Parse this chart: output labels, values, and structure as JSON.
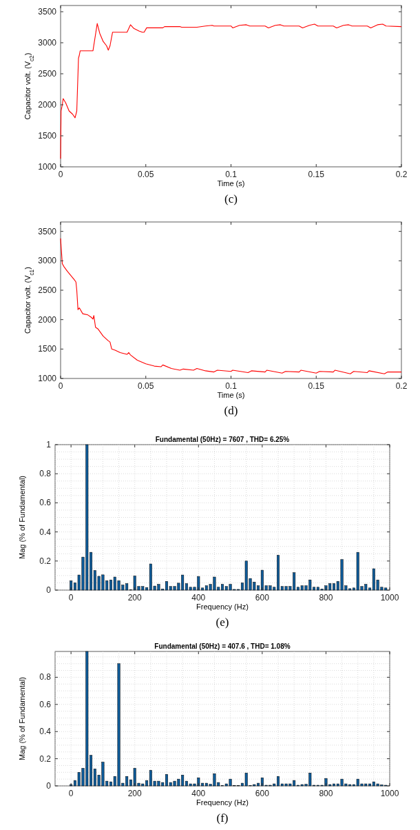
{
  "chart_data": [
    {
      "type": "line",
      "xlabel": "Time (s)",
      "ylabel": "Capacitor volt. (V$_{c2}$)",
      "xlim": [
        0,
        0.2
      ],
      "ylim": [
        1000,
        3600
      ],
      "xticks": [
        0,
        0.05,
        0.1,
        0.15,
        0.2
      ],
      "yticks": [
        1000,
        1500,
        2000,
        2500,
        3000,
        3500
      ],
      "annotations": [
        "(c)"
      ],
      "series": [
        {
          "color": "#ff0000",
          "x": [
            0,
            0.0003,
            0.001,
            0.0015,
            0.003,
            0.005,
            0.007,
            0.0085,
            0.0095,
            0.0105,
            0.011,
            0.0115,
            0.019,
            0.0215,
            0.023,
            0.025,
            0.027,
            0.028,
            0.029,
            0.0305,
            0.039,
            0.041,
            0.043,
            0.046,
            0.048,
            0.049,
            0.0505,
            0.06,
            0.061,
            0.07,
            0.071,
            0.08,
            0.085,
            0.089,
            0.09,
            0.1,
            0.101,
            0.105,
            0.109,
            0.111,
            0.12,
            0.122,
            0.126,
            0.129,
            0.131,
            0.14,
            0.142,
            0.146,
            0.149,
            0.151,
            0.16,
            0.162,
            0.166,
            0.169,
            0.171,
            0.18,
            0.182,
            0.186,
            0.189,
            0.191,
            0.2
          ],
          "values": [
            1130,
            1900,
            2000,
            2100,
            2030,
            1900,
            1850,
            1790,
            1900,
            2750,
            2800,
            2870,
            2870,
            3310,
            3150,
            3020,
            2950,
            2880,
            2950,
            3170,
            3170,
            3290,
            3230,
            3190,
            3170,
            3170,
            3240,
            3240,
            3260,
            3260,
            3250,
            3250,
            3270,
            3280,
            3270,
            3270,
            3240,
            3280,
            3290,
            3270,
            3270,
            3240,
            3280,
            3290,
            3270,
            3270,
            3240,
            3280,
            3300,
            3270,
            3270,
            3240,
            3280,
            3290,
            3270,
            3270,
            3240,
            3290,
            3300,
            3270,
            3260
          ]
        }
      ]
    },
    {
      "type": "line",
      "xlabel": "Time (s)",
      "ylabel": "Capacitor volt. (V$_{c1}$)",
      "xlim": [
        0,
        0.2
      ],
      "ylim": [
        1000,
        3660
      ],
      "xticks": [
        0,
        0.05,
        0.1,
        0.15,
        0.2
      ],
      "yticks": [
        1000,
        1500,
        2000,
        2500,
        3000,
        3500
      ],
      "annotations": [
        "(d)"
      ],
      "series": [
        {
          "color": "#ff0000",
          "x": [
            0,
            0.001,
            0.002,
            0.004,
            0.006,
            0.008,
            0.009,
            0.0095,
            0.0102,
            0.011,
            0.013,
            0.016,
            0.018,
            0.019,
            0.0195,
            0.0205,
            0.022,
            0.025,
            0.028,
            0.029,
            0.03,
            0.032,
            0.035,
            0.039,
            0.04,
            0.041,
            0.045,
            0.05,
            0.055,
            0.059,
            0.06,
            0.065,
            0.07,
            0.072,
            0.078,
            0.08,
            0.085,
            0.09,
            0.092,
            0.1,
            0.101,
            0.11,
            0.112,
            0.12,
            0.121,
            0.13,
            0.132,
            0.14,
            0.141,
            0.15,
            0.152,
            0.16,
            0.161,
            0.17,
            0.172,
            0.18,
            0.181,
            0.19,
            0.192,
            0.2
          ],
          "values": [
            3380,
            2950,
            2900,
            2820,
            2750,
            2680,
            2640,
            2500,
            2170,
            2200,
            2100,
            2080,
            2040,
            2010,
            2070,
            1870,
            1840,
            1720,
            1640,
            1620,
            1500,
            1480,
            1440,
            1410,
            1440,
            1400,
            1310,
            1250,
            1210,
            1200,
            1230,
            1170,
            1140,
            1160,
            1140,
            1170,
            1130,
            1110,
            1140,
            1120,
            1140,
            1100,
            1130,
            1110,
            1140,
            1090,
            1120,
            1110,
            1140,
            1090,
            1120,
            1110,
            1140,
            1080,
            1120,
            1100,
            1130,
            1080,
            1110,
            1110
          ]
        }
      ]
    },
    {
      "type": "bar",
      "title": "Fundamental (50Hz) = 7607 , THD= 6.25%",
      "xlabel": "Frequency (Hz)",
      "ylabel": "Mag (% of Fundamental)",
      "xlim": [
        -50,
        1000
      ],
      "ylim": [
        0,
        1
      ],
      "xticks": [
        0,
        200,
        400,
        600,
        800,
        1000
      ],
      "yticks": [
        0,
        0.2,
        0.4,
        0.6,
        0.8,
        1
      ],
      "grid": true,
      "annotations": [
        "(e)"
      ],
      "series": [
        {
          "color": "#0f5c9a",
          "x": [
            0,
            12.5,
            25,
            37.5,
            50,
            62.5,
            75,
            87.5,
            100,
            112.5,
            125,
            137.5,
            150,
            162.5,
            175,
            187.5,
            200,
            212.5,
            225,
            237.5,
            250,
            262.5,
            275,
            287.5,
            300,
            312.5,
            325,
            337.5,
            350,
            362.5,
            375,
            387.5,
            400,
            412.5,
            425,
            437.5,
            450,
            462.5,
            475,
            487.5,
            500,
            512.5,
            525,
            537.5,
            550,
            562.5,
            575,
            587.5,
            600,
            612.5,
            625,
            637.5,
            650,
            662.5,
            675,
            687.5,
            700,
            712.5,
            725,
            737.5,
            750,
            762.5,
            775,
            787.5,
            800,
            812.5,
            825,
            837.5,
            850,
            862.5,
            875,
            887.5,
            900,
            912.5,
            925,
            937.5,
            950,
            962.5,
            975,
            987.5
          ],
          "values": [
            0.064,
            0.05,
            0.104,
            0.227,
            1,
            0.26,
            0.135,
            0.095,
            0.105,
            0.065,
            0.07,
            0.09,
            0.065,
            0.035,
            0.045,
            0.003,
            0.097,
            0.025,
            0.025,
            0.018,
            0.18,
            0.028,
            0.04,
            0.008,
            0.06,
            0.025,
            0.025,
            0.048,
            0.104,
            0.045,
            0.02,
            0.02,
            0.094,
            0.015,
            0.03,
            0.04,
            0.09,
            0.02,
            0.04,
            0.025,
            0.04,
            0.005,
            0.005,
            0.05,
            0.2,
            0.08,
            0.055,
            0.03,
            0.137,
            0.03,
            0.03,
            0.02,
            0.24,
            0.025,
            0.025,
            0.025,
            0.12,
            0.02,
            0.03,
            0.03,
            0.07,
            0.02,
            0.02,
            0.008,
            0.03,
            0.045,
            0.045,
            0.06,
            0.21,
            0.03,
            0.01,
            0.015,
            0.26,
            0.025,
            0.04,
            0.015,
            0.147,
            0.07,
            0.02,
            0.015
          ]
        }
      ]
    },
    {
      "type": "bar",
      "title": "Fundamental (50Hz) = 407.6 , THD= 1.08%",
      "xlabel": "Frequency (Hz)",
      "ylabel": "Mag (% of Fundamental)",
      "xlim": [
        -50,
        1000
      ],
      "ylim": [
        0,
        0.99
      ],
      "xticks": [
        0,
        200,
        400,
        600,
        800,
        1000
      ],
      "yticks": [
        0,
        0.2,
        0.4,
        0.6,
        0.8
      ],
      "grid": true,
      "annotations": [
        "(f)"
      ],
      "series": [
        {
          "color": "#0f5c9a",
          "x": [
            0,
            12.5,
            25,
            37.5,
            50,
            62.5,
            75,
            87.5,
            100,
            112.5,
            125,
            137.5,
            150,
            162.5,
            175,
            187.5,
            200,
            212.5,
            225,
            237.5,
            250,
            262.5,
            275,
            287.5,
            300,
            312.5,
            325,
            337.5,
            350,
            362.5,
            375,
            387.5,
            400,
            412.5,
            425,
            437.5,
            450,
            462.5,
            475,
            487.5,
            500,
            512.5,
            525,
            537.5,
            550,
            562.5,
            575,
            587.5,
            600,
            612.5,
            625,
            637.5,
            650,
            662.5,
            675,
            687.5,
            700,
            712.5,
            725,
            737.5,
            750,
            762.5,
            775,
            787.5,
            800,
            812.5,
            825,
            837.5,
            850,
            862.5,
            875,
            887.5,
            900,
            912.5,
            925,
            937.5,
            950,
            962.5,
            975,
            987.5
          ],
          "values": [
            0.01,
            0.04,
            0.1,
            0.13,
            0.99,
            0.225,
            0.125,
            0.08,
            0.175,
            0.035,
            0.03,
            0.07,
            0.9,
            0.02,
            0.07,
            0.045,
            0.13,
            0.02,
            0.015,
            0.04,
            0.115,
            0.035,
            0.035,
            0.025,
            0.085,
            0.025,
            0.035,
            0.05,
            0.08,
            0.035,
            0.015,
            0.015,
            0.06,
            0.02,
            0.02,
            0.012,
            0.09,
            0.025,
            0.003,
            0.015,
            0.05,
            0.003,
            0.003,
            0.02,
            0.095,
            0.003,
            0.01,
            0.02,
            0.06,
            0.005,
            0.005,
            0.015,
            0.07,
            0.015,
            0.015,
            0.015,
            0.04,
            0.005,
            0.01,
            0.012,
            0.095,
            0.005,
            0.005,
            0.005,
            0.055,
            0.01,
            0.015,
            0.015,
            0.05,
            0.015,
            0.01,
            0.01,
            0.05,
            0.015,
            0.015,
            0.015,
            0.03,
            0.015,
            0.008,
            0.005
          ]
        }
      ]
    }
  ]
}
